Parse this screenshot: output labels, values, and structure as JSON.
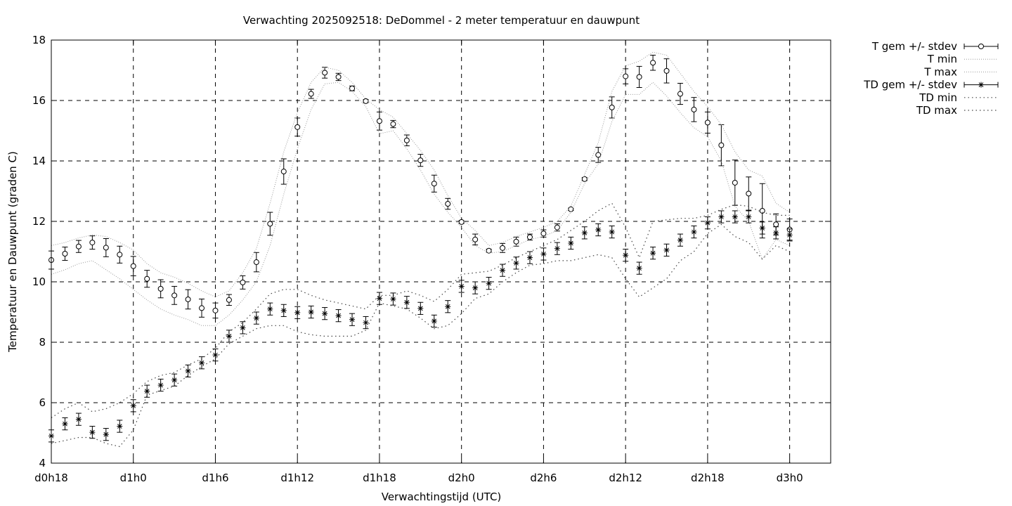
{
  "chart_data": {
    "type": "line",
    "title": "Verwachting 2025092518: DeDommel - 2 meter temperatuur en dauwpunt",
    "xlabel": "Verwachtingstijd (UTC)",
    "ylabel": "Temperatuur en Dauwpunt (graden C)",
    "xlim": [
      18,
      75
    ],
    "ylim": [
      4,
      18
    ],
    "x_ticks": [
      {
        "v": 18,
        "label": "d0h18"
      },
      {
        "v": 24,
        "label": "d1h0"
      },
      {
        "v": 30,
        "label": "d1h6"
      },
      {
        "v": 36,
        "label": "d1h12"
      },
      {
        "v": 42,
        "label": "d1h18"
      },
      {
        "v": 48,
        "label": "d2h0"
      },
      {
        "v": 54,
        "label": "d2h6"
      },
      {
        "v": 60,
        "label": "d2h12"
      },
      {
        "v": 66,
        "label": "d2h18"
      },
      {
        "v": 72,
        "label": "d3h0"
      }
    ],
    "y_ticks": [
      4,
      6,
      8,
      10,
      12,
      14,
      16,
      18
    ],
    "grid": true,
    "legend_position": "outside-right",
    "x": [
      18,
      19,
      20,
      21,
      22,
      23,
      24,
      25,
      26,
      27,
      28,
      29,
      30,
      31,
      32,
      33,
      34,
      35,
      36,
      37,
      38,
      39,
      40,
      41,
      42,
      43,
      44,
      45,
      46,
      47,
      48,
      49,
      50,
      51,
      52,
      53,
      54,
      55,
      56,
      57,
      58,
      59,
      60,
      61,
      62,
      63,
      64,
      65,
      66,
      67,
      68,
      69,
      70,
      71,
      72
    ],
    "series": [
      {
        "name": "T gem +/- stdev",
        "style": "errorbars-circle",
        "values": [
          10.72,
          10.93,
          11.17,
          11.3,
          11.13,
          10.9,
          10.52,
          10.1,
          9.77,
          9.55,
          9.42,
          9.13,
          9.05,
          9.4,
          9.98,
          10.65,
          11.92,
          13.65,
          15.12,
          16.22,
          16.92,
          16.78,
          16.4,
          15.98,
          15.32,
          15.22,
          14.68,
          14.02,
          13.25,
          12.58,
          11.98,
          11.4,
          11.03,
          11.12,
          11.33,
          11.48,
          11.6,
          11.8,
          12.4,
          13.4,
          14.2,
          15.77,
          16.8,
          16.78,
          17.25,
          16.98,
          16.22,
          15.7,
          15.27,
          14.52,
          13.28,
          12.92,
          12.35,
          11.9,
          11.73
        ],
        "stdev": [
          0.3,
          0.22,
          0.2,
          0.22,
          0.3,
          0.28,
          0.32,
          0.28,
          0.3,
          0.3,
          0.32,
          0.3,
          0.25,
          0.18,
          0.22,
          0.32,
          0.38,
          0.42,
          0.3,
          0.15,
          0.18,
          0.12,
          0.08,
          0.05,
          0.3,
          0.12,
          0.18,
          0.2,
          0.28,
          0.18,
          0.05,
          0.18,
          0.05,
          0.15,
          0.15,
          0.1,
          0.12,
          0.12,
          0.04,
          0.05,
          0.25,
          0.35,
          0.25,
          0.35,
          0.25,
          0.4,
          0.35,
          0.4,
          0.35,
          0.68,
          0.75,
          0.55,
          0.9,
          0.35,
          0.35
        ]
      },
      {
        "name": "T min",
        "style": "dotted",
        "values": [
          10.25,
          10.4,
          10.6,
          10.7,
          10.4,
          10.1,
          9.75,
          9.4,
          9.1,
          8.9,
          8.75,
          8.55,
          8.55,
          8.9,
          9.4,
          10.0,
          11.2,
          12.9,
          14.4,
          15.7,
          16.55,
          16.6,
          16.3,
          15.8,
          14.9,
          15.0,
          14.4,
          13.7,
          12.9,
          12.3,
          11.8,
          11.2,
          10.95,
          11.0,
          11.2,
          11.4,
          11.5,
          11.7,
          12.3,
          13.25,
          13.9,
          15.3,
          16.2,
          16.2,
          16.6,
          16.15,
          15.6,
          15.1,
          14.8,
          14.0,
          12.5,
          12.0,
          10.75,
          11.4,
          11.2
        ]
      },
      {
        "name": "T max",
        "style": "dotted",
        "values": [
          11.2,
          11.3,
          11.45,
          11.55,
          11.5,
          11.3,
          11.05,
          10.6,
          10.3,
          10.15,
          9.95,
          9.7,
          9.5,
          9.7,
          10.3,
          11.1,
          12.6,
          14.3,
          15.6,
          16.6,
          17.1,
          17.0,
          16.6,
          16.05,
          15.7,
          15.45,
          14.9,
          14.35,
          13.7,
          12.85,
          12.1,
          11.7,
          11.2,
          11.3,
          11.5,
          11.65,
          11.8,
          12.0,
          12.5,
          13.55,
          14.6,
          16.3,
          17.15,
          17.3,
          17.6,
          17.5,
          16.9,
          16.3,
          15.8,
          15.2,
          14.3,
          13.7,
          13.5,
          12.6,
          12.3
        ]
      },
      {
        "name": "TD gem +/- stdev",
        "style": "errorbars-star",
        "values": [
          4.9,
          5.3,
          5.45,
          5.02,
          4.95,
          5.22,
          5.9,
          6.38,
          6.58,
          6.75,
          7.05,
          7.32,
          7.58,
          8.2,
          8.48,
          8.8,
          9.1,
          9.05,
          8.98,
          9.0,
          8.95,
          8.88,
          8.75,
          8.65,
          9.45,
          9.43,
          9.32,
          9.12,
          8.7,
          9.18,
          9.85,
          9.8,
          9.95,
          10.38,
          10.62,
          10.8,
          10.92,
          11.1,
          11.28,
          11.62,
          11.72,
          11.65,
          10.88,
          10.45,
          10.95,
          11.05,
          11.38,
          11.65,
          11.95,
          12.15,
          12.15,
          12.15,
          11.78,
          11.62,
          11.55
        ]
      },
      {
        "name": "TD min",
        "style": "dotted",
        "values": [
          4.65,
          4.75,
          4.85,
          4.85,
          4.65,
          4.55,
          5.1,
          6.25,
          6.4,
          6.55,
          6.9,
          7.2,
          7.45,
          7.95,
          8.2,
          8.45,
          8.55,
          8.55,
          8.35,
          8.25,
          8.2,
          8.2,
          8.2,
          8.4,
          9.3,
          9.2,
          9.1,
          8.8,
          8.45,
          8.55,
          8.95,
          9.45,
          9.6,
          10.0,
          10.3,
          10.55,
          10.6,
          10.7,
          10.7,
          10.8,
          10.9,
          10.8,
          10.1,
          9.5,
          9.8,
          10.1,
          10.7,
          11.0,
          11.6,
          11.9,
          11.5,
          11.3,
          10.75,
          11.2,
          11.0
        ]
      },
      {
        "name": "TD max",
        "style": "dotted",
        "values": [
          5.5,
          5.8,
          6.0,
          5.7,
          5.8,
          6.0,
          6.3,
          6.7,
          6.9,
          7.0,
          7.25,
          7.45,
          7.8,
          8.35,
          8.65,
          9.1,
          9.6,
          9.75,
          9.75,
          9.55,
          9.4,
          9.3,
          9.2,
          9.1,
          9.55,
          9.55,
          9.7,
          9.55,
          9.35,
          9.75,
          10.25,
          10.3,
          10.35,
          10.55,
          10.8,
          11.0,
          11.2,
          11.4,
          11.7,
          12.0,
          12.35,
          12.6,
          11.8,
          10.8,
          12.0,
          12.05,
          12.1,
          12.1,
          12.2,
          12.4,
          12.55,
          12.5,
          12.3,
          12.2,
          12.2
        ]
      }
    ]
  }
}
